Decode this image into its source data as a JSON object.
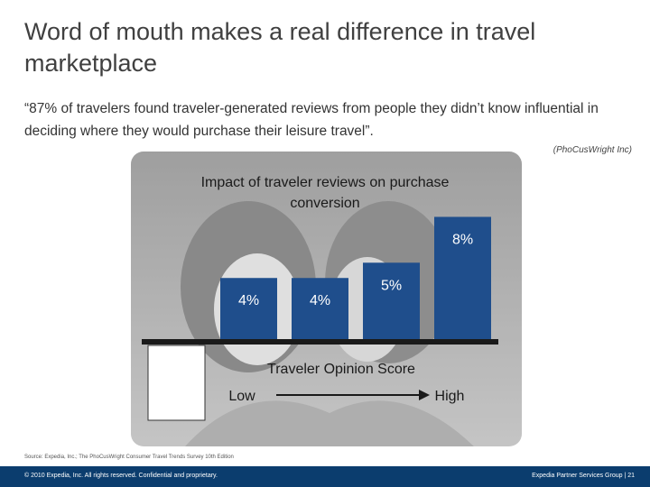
{
  "slide": {
    "title": "Word of mouth makes a real difference in travel marketplace",
    "quote": "“87% of travelers found traveler-generated reviews from people they didn’t know influential in deciding where they would purchase their leisure travel”.",
    "quote_source": "(PhoCusWright Inc)",
    "source_note": "Source: Expedia, Inc.; The PhoCusWright Consumer Travel Trends Survey 10th Edition",
    "footer_left": "© 2010 Expedia, Inc. All rights reserved. Confidential and proprietary.",
    "footer_right": "Expedia Partner Services Group | 21"
  },
  "colors": {
    "bar": "#1f4e8c",
    "footer": "#0b3d6e",
    "axis": "#1a1a1a"
  },
  "chart_data": {
    "type": "bar",
    "title": "Impact of traveler reviews on purchase conversion",
    "xlabel": "Traveler Opinion Score",
    "x_low_label": "Low",
    "x_high_label": "High",
    "categories": [
      "",
      "",
      "",
      "",
      ""
    ],
    "values": [
      0,
      4,
      4,
      5,
      8
    ],
    "data_labels": [
      "",
      "4%",
      "4%",
      "5%",
      "8%"
    ],
    "ylim": [
      0,
      8.5
    ],
    "grid": false
  }
}
